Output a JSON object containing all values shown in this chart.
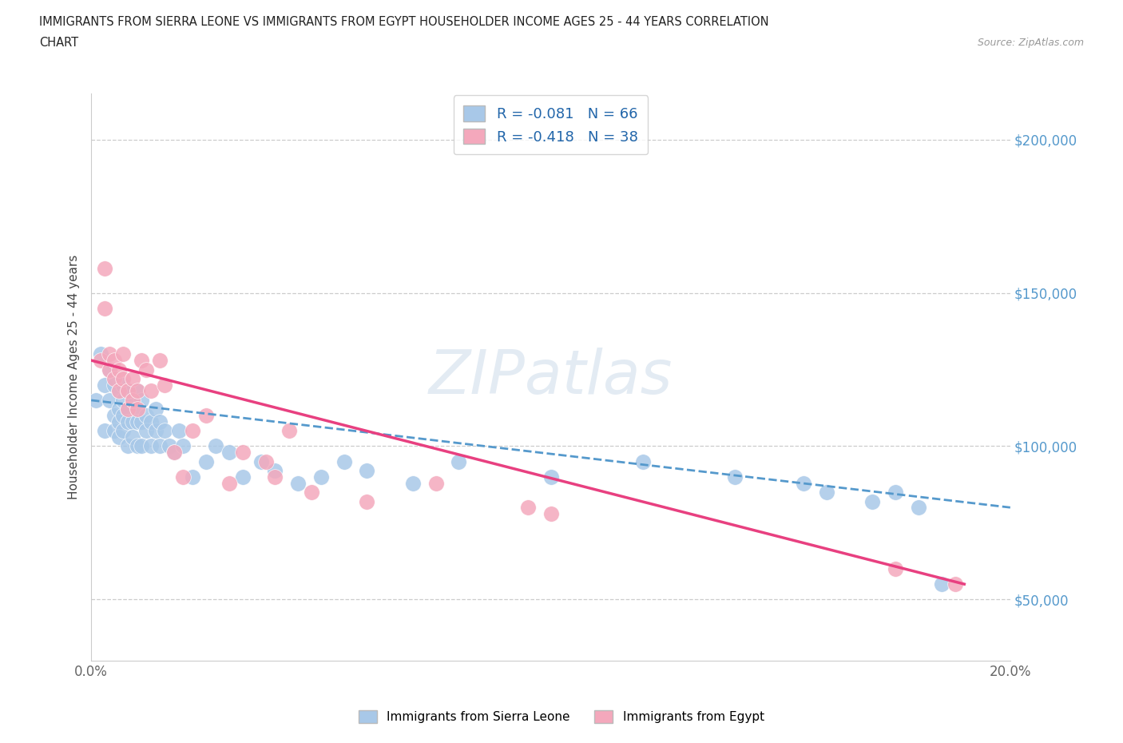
{
  "title_line1": "IMMIGRANTS FROM SIERRA LEONE VS IMMIGRANTS FROM EGYPT HOUSEHOLDER INCOME AGES 25 - 44 YEARS CORRELATION",
  "title_line2": "CHART",
  "source_text": "Source: ZipAtlas.com",
  "ylabel": "Householder Income Ages 25 - 44 years",
  "xlim": [
    0.0,
    0.2
  ],
  "ylim": [
    30000,
    215000
  ],
  "yticks": [
    50000,
    100000,
    150000,
    200000
  ],
  "ytick_labels": [
    "$50,000",
    "$100,000",
    "$150,000",
    "$200,000"
  ],
  "xticks": [
    0.0,
    0.025,
    0.05,
    0.075,
    0.1,
    0.125,
    0.15,
    0.175,
    0.2
  ],
  "xtick_labels": [
    "0.0%",
    "",
    "",
    "",
    "",
    "",
    "",
    "",
    "20.0%"
  ],
  "bottom_legend_labels": [
    "Immigrants from Sierra Leone",
    "Immigrants from Egypt"
  ],
  "sl_R": -0.081,
  "sl_N": 66,
  "eg_R": -0.418,
  "eg_N": 38,
  "sl_color": "#a8c8e8",
  "eg_color": "#f4a8bc",
  "sl_line_color": "#5599cc",
  "eg_line_color": "#e84080",
  "watermark_text": "ZIPatlas",
  "background_color": "#ffffff",
  "sl_x": [
    0.001,
    0.002,
    0.003,
    0.003,
    0.004,
    0.004,
    0.005,
    0.005,
    0.005,
    0.006,
    0.006,
    0.006,
    0.006,
    0.007,
    0.007,
    0.007,
    0.007,
    0.008,
    0.008,
    0.008,
    0.008,
    0.009,
    0.009,
    0.009,
    0.01,
    0.01,
    0.01,
    0.01,
    0.011,
    0.011,
    0.011,
    0.012,
    0.012,
    0.013,
    0.013,
    0.014,
    0.014,
    0.015,
    0.015,
    0.016,
    0.017,
    0.018,
    0.019,
    0.02,
    0.022,
    0.025,
    0.027,
    0.03,
    0.033,
    0.037,
    0.04,
    0.045,
    0.05,
    0.055,
    0.06,
    0.07,
    0.08,
    0.1,
    0.12,
    0.14,
    0.155,
    0.16,
    0.17,
    0.175,
    0.18,
    0.185
  ],
  "sl_y": [
    115000,
    130000,
    105000,
    120000,
    115000,
    125000,
    110000,
    120000,
    105000,
    118000,
    112000,
    108000,
    103000,
    120000,
    115000,
    110000,
    105000,
    118000,
    112000,
    108000,
    100000,
    115000,
    108000,
    103000,
    118000,
    112000,
    108000,
    100000,
    115000,
    108000,
    100000,
    110000,
    105000,
    108000,
    100000,
    112000,
    105000,
    108000,
    100000,
    105000,
    100000,
    98000,
    105000,
    100000,
    90000,
    95000,
    100000,
    98000,
    90000,
    95000,
    92000,
    88000,
    90000,
    95000,
    92000,
    88000,
    95000,
    90000,
    95000,
    90000,
    88000,
    85000,
    82000,
    85000,
    80000,
    55000
  ],
  "eg_x": [
    0.002,
    0.003,
    0.003,
    0.004,
    0.004,
    0.005,
    0.005,
    0.006,
    0.006,
    0.007,
    0.007,
    0.008,
    0.008,
    0.009,
    0.009,
    0.01,
    0.01,
    0.011,
    0.012,
    0.013,
    0.015,
    0.016,
    0.018,
    0.02,
    0.022,
    0.025,
    0.03,
    0.033,
    0.038,
    0.04,
    0.043,
    0.048,
    0.06,
    0.075,
    0.095,
    0.1,
    0.175,
    0.188
  ],
  "eg_y": [
    128000,
    158000,
    145000,
    130000,
    125000,
    128000,
    122000,
    125000,
    118000,
    130000,
    122000,
    118000,
    112000,
    122000,
    115000,
    118000,
    112000,
    128000,
    125000,
    118000,
    128000,
    120000,
    98000,
    90000,
    105000,
    110000,
    88000,
    98000,
    95000,
    90000,
    105000,
    85000,
    82000,
    88000,
    80000,
    78000,
    60000,
    55000
  ]
}
